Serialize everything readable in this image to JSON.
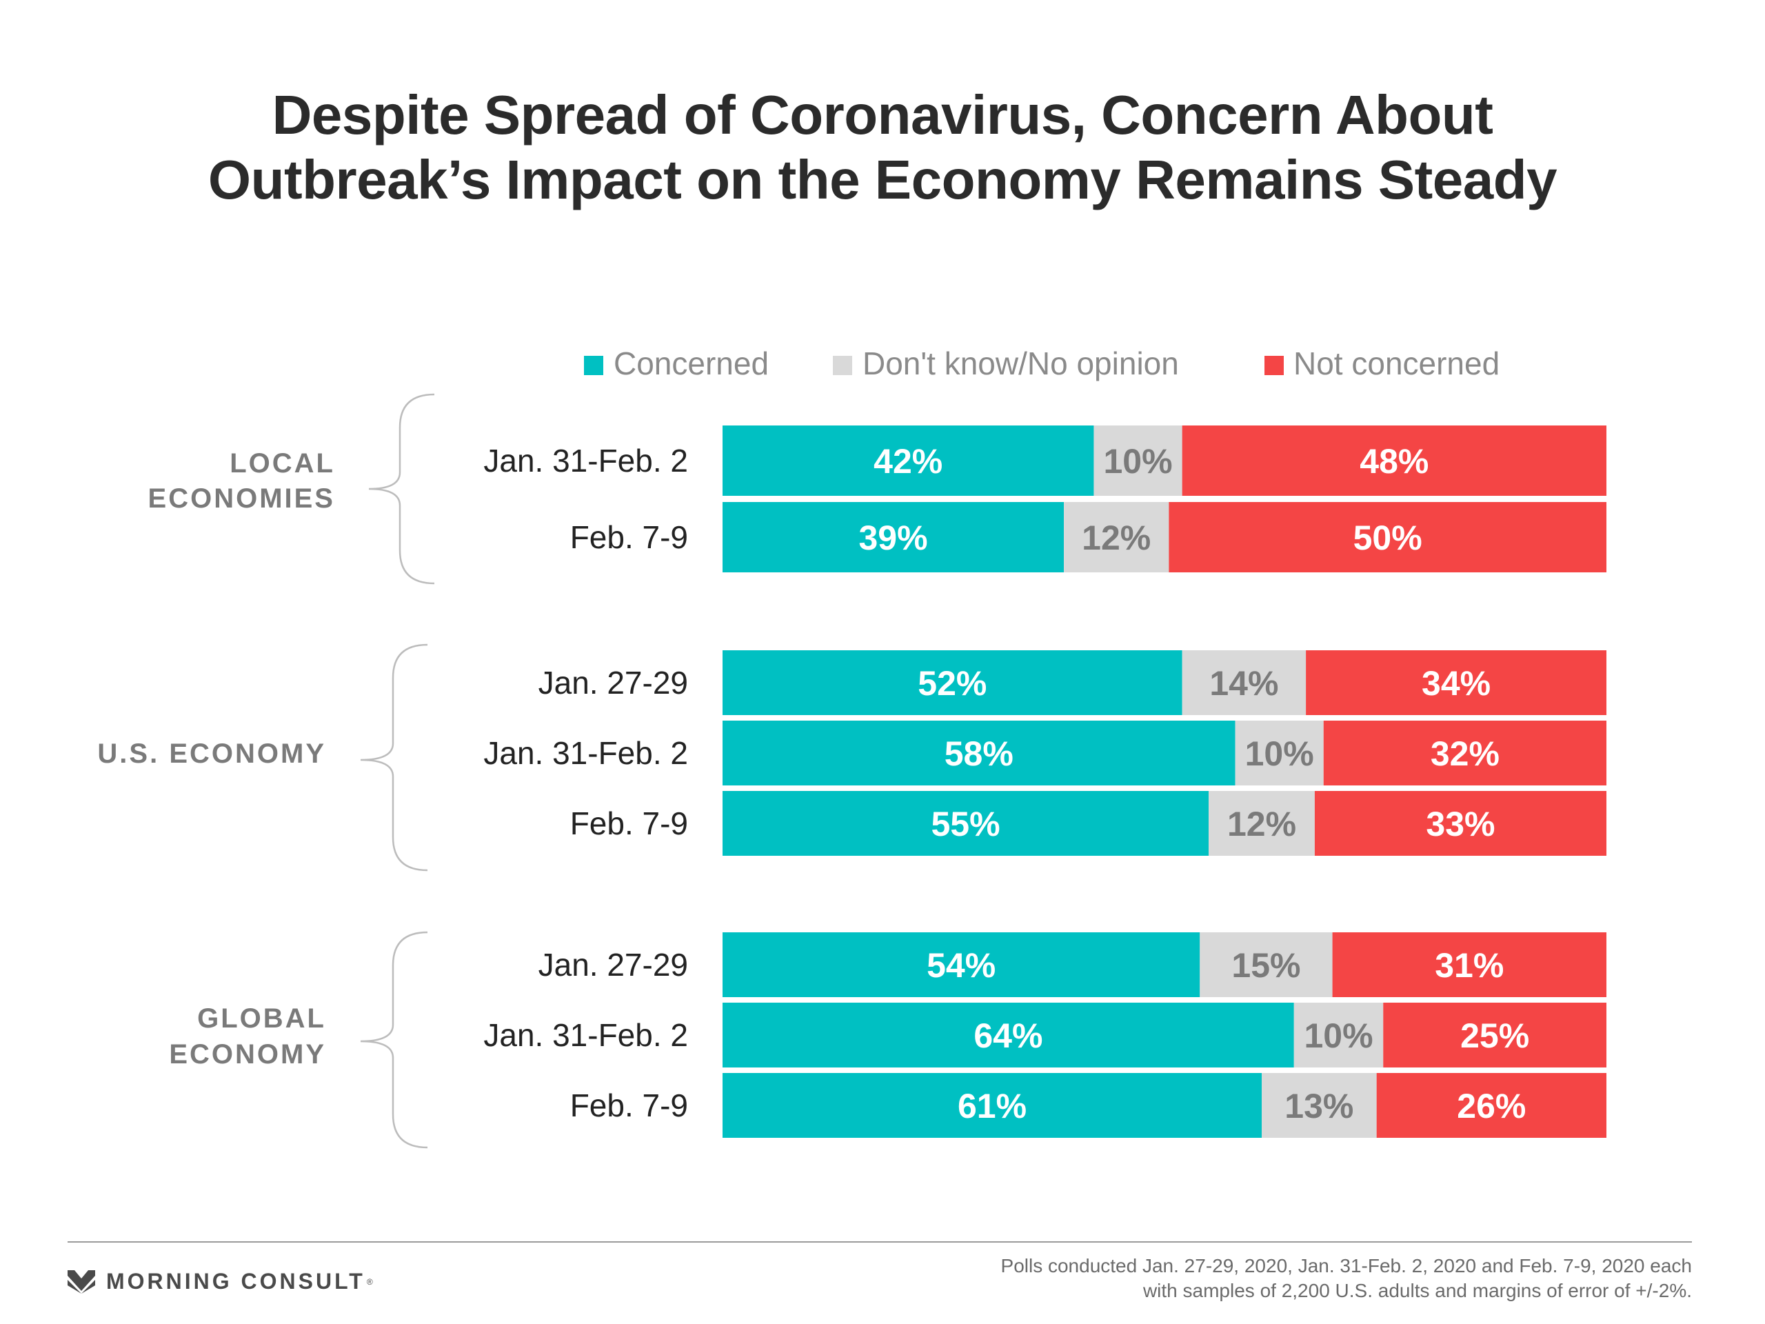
{
  "title_lines": [
    "Despite Spread of Coronavirus, Concern About",
    "Outbreak’s Impact on the Economy Remains Steady"
  ],
  "chart_data": {
    "type": "bar",
    "stacked": true,
    "orientation": "horizontal",
    "scale_max": 100,
    "legend_position": "top",
    "series": [
      {
        "name": "Concerned",
        "color": "#00c0c2"
      },
      {
        "name": "Don't know/No opinion",
        "color": "#d9d9d9"
      },
      {
        "name": "Not concerned",
        "color": "#f44545"
      }
    ],
    "groups": [
      {
        "label_lines": [
          "LOCAL",
          "ECONOMIES"
        ],
        "rows": [
          {
            "label": "Jan. 31-Feb. 2",
            "values": [
              42,
              10,
              48
            ],
            "labels": [
              "42%",
              "10%",
              "48%"
            ]
          },
          {
            "label": "Feb. 7-9",
            "values": [
              39,
              12,
              50
            ],
            "labels": [
              "39%",
              "12%",
              "50%"
            ]
          }
        ]
      },
      {
        "label_lines": [
          "U.S. ECONOMY"
        ],
        "rows": [
          {
            "label": "Jan. 27-29",
            "values": [
              52,
              14,
              34
            ],
            "labels": [
              "52%",
              "14%",
              "34%"
            ]
          },
          {
            "label": "Jan. 31-Feb. 2",
            "values": [
              58,
              10,
              32
            ],
            "labels": [
              "58%",
              "10%",
              "32%"
            ]
          },
          {
            "label": "Feb. 7-9",
            "values": [
              55,
              12,
              33
            ],
            "labels": [
              "55%",
              "12%",
              "33%"
            ]
          }
        ]
      },
      {
        "label_lines": [
          "GLOBAL",
          "ECONOMY"
        ],
        "rows": [
          {
            "label": "Jan. 27-29",
            "values": [
              54,
              15,
              31
            ],
            "labels": [
              "54%",
              "15%",
              "31%"
            ]
          },
          {
            "label": "Jan. 31-Feb. 2",
            "values": [
              64,
              10,
              25
            ],
            "labels": [
              "64%",
              "10%",
              "25%"
            ]
          },
          {
            "label": "Feb. 7-9",
            "values": [
              61,
              13,
              26
            ],
            "labels": [
              "61%",
              "13%",
              "26%"
            ]
          }
        ]
      }
    ]
  },
  "footer": {
    "brand": "MORNING CONSULT",
    "brand_mark": "®",
    "note_lines": [
      "Polls conducted Jan. 27-29, 2020, Jan. 31-Feb. 2, 2020 and Feb. 7-9, 2020 each",
      "with samples of 2,200 U.S. adults and margins of error of +/-2%."
    ]
  }
}
